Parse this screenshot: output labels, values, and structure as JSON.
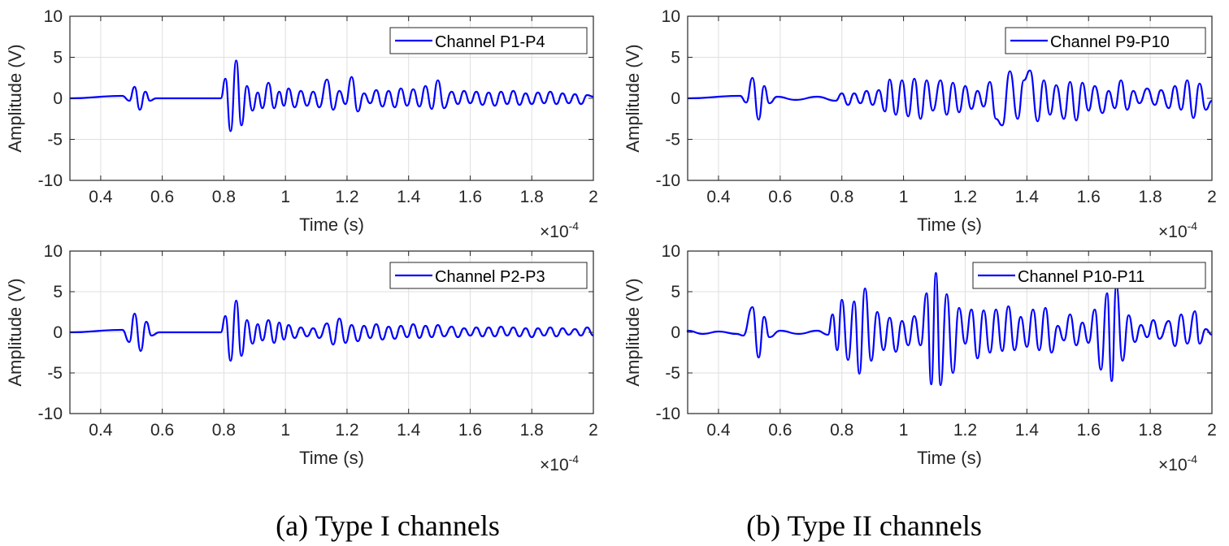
{
  "captions": {
    "left": "(a) Type I channels",
    "right": "(b) Type II channels"
  },
  "line_color": "#0000ff",
  "chart_data": [
    {
      "type": "line",
      "panel": "top-left",
      "legend": "Channel P1-P4",
      "xlabel": "Time (s)",
      "ylabel": "Amplitude (V)",
      "xlim": [
        0.3,
        2.0
      ],
      "ylim": [
        -10,
        10
      ],
      "x_multiplier": "×10",
      "x_exponent": "-4",
      "xticks": [
        "0.4",
        "0.6",
        "0.8",
        "1",
        "1.2",
        "1.4",
        "1.6",
        "1.8",
        "2"
      ],
      "yticks": [
        "10",
        "5",
        "0",
        "-5",
        "-10"
      ],
      "grid": true,
      "legend_position": "top-right",
      "peaks": [
        [
          0.47,
          0.3
        ],
        [
          0.493,
          -0.3
        ],
        [
          0.51,
          1.4
        ],
        [
          0.527,
          -1.4
        ],
        [
          0.545,
          0.8
        ],
        [
          0.56,
          -0.3
        ],
        [
          0.58,
          0.0
        ],
        [
          0.79,
          0.0
        ],
        [
          0.805,
          2.4
        ],
        [
          0.822,
          -4.0
        ],
        [
          0.84,
          4.6
        ],
        [
          0.857,
          -3.3
        ],
        [
          0.875,
          1.5
        ],
        [
          0.893,
          -1.5
        ],
        [
          0.91,
          0.7
        ],
        [
          0.925,
          -1.2
        ],
        [
          0.945,
          1.9
        ],
        [
          0.963,
          -1.2
        ],
        [
          0.98,
          0.8
        ],
        [
          0.995,
          -0.9
        ],
        [
          1.01,
          1.2
        ],
        [
          1.03,
          -1.1
        ],
        [
          1.05,
          0.9
        ],
        [
          1.07,
          -0.9
        ],
        [
          1.09,
          0.8
        ],
        [
          1.11,
          -1.1
        ],
        [
          1.135,
          2.3
        ],
        [
          1.155,
          -1.4
        ],
        [
          1.175,
          0.9
        ],
        [
          1.195,
          -0.7
        ],
        [
          1.215,
          2.6
        ],
        [
          1.235,
          -1.6
        ],
        [
          1.255,
          0.6
        ],
        [
          1.275,
          -0.6
        ],
        [
          1.295,
          1.0
        ],
        [
          1.315,
          -1.0
        ],
        [
          1.335,
          0.9
        ],
        [
          1.355,
          -1.1
        ],
        [
          1.375,
          1.2
        ],
        [
          1.395,
          -0.9
        ],
        [
          1.415,
          1.1
        ],
        [
          1.435,
          -1.0
        ],
        [
          1.455,
          1.5
        ],
        [
          1.475,
          -1.3
        ],
        [
          1.495,
          2.2
        ],
        [
          1.515,
          -1.2
        ],
        [
          1.54,
          0.8
        ],
        [
          1.56,
          -0.7
        ],
        [
          1.58,
          0.9
        ],
        [
          1.6,
          -0.6
        ],
        [
          1.62,
          0.8
        ],
        [
          1.64,
          -0.8
        ],
        [
          1.66,
          0.7
        ],
        [
          1.68,
          -0.9
        ],
        [
          1.7,
          0.8
        ],
        [
          1.72,
          -0.7
        ],
        [
          1.74,
          0.9
        ],
        [
          1.76,
          -0.8
        ],
        [
          1.78,
          0.6
        ],
        [
          1.8,
          -0.7
        ],
        [
          1.82,
          0.7
        ],
        [
          1.84,
          -0.6
        ],
        [
          1.86,
          0.8
        ],
        [
          1.88,
          -0.7
        ],
        [
          1.9,
          0.6
        ],
        [
          1.92,
          -0.6
        ],
        [
          1.94,
          0.5
        ],
        [
          1.96,
          -0.7
        ],
        [
          1.98,
          0.4
        ],
        [
          2.0,
          0.2
        ]
      ]
    },
    {
      "type": "line",
      "panel": "top-right",
      "legend": "Channel P9-P10",
      "xlabel": "Time (s)",
      "ylabel": "Amplitude (V)",
      "xlim": [
        0.3,
        2.0
      ],
      "ylim": [
        -10,
        10
      ],
      "x_multiplier": "×10",
      "x_exponent": "-4",
      "xticks": [
        "0.4",
        "0.6",
        "0.8",
        "1",
        "1.2",
        "1.4",
        "1.6",
        "1.8",
        "2"
      ],
      "yticks": [
        "10",
        "5",
        "0",
        "-5",
        "-10"
      ],
      "grid": true,
      "legend_position": "top-right",
      "peaks": [
        [
          0.47,
          0.3
        ],
        [
          0.49,
          -0.5
        ],
        [
          0.51,
          2.5
        ],
        [
          0.53,
          -2.6
        ],
        [
          0.548,
          1.5
        ],
        [
          0.565,
          -0.6
        ],
        [
          0.59,
          0.2
        ],
        [
          0.65,
          -0.2
        ],
        [
          0.72,
          0.2
        ],
        [
          0.78,
          -0.3
        ],
        [
          0.8,
          0.6
        ],
        [
          0.82,
          -0.8
        ],
        [
          0.84,
          0.6
        ],
        [
          0.86,
          -0.6
        ],
        [
          0.88,
          0.9
        ],
        [
          0.9,
          -0.8
        ],
        [
          0.92,
          1.0
        ],
        [
          0.94,
          -1.6
        ],
        [
          0.955,
          2.3
        ],
        [
          0.975,
          -2.0
        ],
        [
          0.995,
          2.2
        ],
        [
          1.015,
          -2.2
        ],
        [
          1.035,
          2.4
        ],
        [
          1.055,
          -2.5
        ],
        [
          1.075,
          2.2
        ],
        [
          1.095,
          -1.5
        ],
        [
          1.12,
          2.2
        ],
        [
          1.14,
          -2.0
        ],
        [
          1.16,
          1.9
        ],
        [
          1.18,
          -1.7
        ],
        [
          1.2,
          1.5
        ],
        [
          1.22,
          -1.3
        ],
        [
          1.24,
          0.9
        ],
        [
          1.26,
          -1.0
        ],
        [
          1.28,
          2.0
        ],
        [
          1.3,
          -2.5
        ],
        [
          1.32,
          -3.3
        ],
        [
          1.345,
          3.3
        ],
        [
          1.37,
          -2.5
        ],
        [
          1.39,
          2.2
        ],
        [
          1.41,
          3.4
        ],
        [
          1.435,
          -2.8
        ],
        [
          1.455,
          2.2
        ],
        [
          1.475,
          -2.0
        ],
        [
          1.495,
          1.6
        ],
        [
          1.52,
          -2.5
        ],
        [
          1.54,
          2.0
        ],
        [
          1.56,
          -2.7
        ],
        [
          1.58,
          1.9
        ],
        [
          1.6,
          -1.5
        ],
        [
          1.62,
          1.5
        ],
        [
          1.645,
          -1.8
        ],
        [
          1.665,
          0.9
        ],
        [
          1.685,
          -1.2
        ],
        [
          1.705,
          2.2
        ],
        [
          1.725,
          -1.4
        ],
        [
          1.745,
          0.9
        ],
        [
          1.765,
          -0.6
        ],
        [
          1.79,
          1.2
        ],
        [
          1.815,
          -0.8
        ],
        [
          1.835,
          1.0
        ],
        [
          1.86,
          -1.2
        ],
        [
          1.88,
          1.5
        ],
        [
          1.9,
          -1.4
        ],
        [
          1.92,
          2.2
        ],
        [
          1.94,
          -2.4
        ],
        [
          1.96,
          1.8
        ],
        [
          1.98,
          -1.4
        ],
        [
          2.0,
          -0.3
        ]
      ]
    },
    {
      "type": "line",
      "panel": "bottom-left",
      "legend": "Channel P2-P3",
      "xlabel": "Time (s)",
      "ylabel": "Amplitude (V)",
      "xlim": [
        0.3,
        2.0
      ],
      "ylim": [
        -10,
        10
      ],
      "x_multiplier": "×10",
      "x_exponent": "-4",
      "xticks": [
        "0.4",
        "0.6",
        "0.8",
        "1",
        "1.2",
        "1.4",
        "1.6",
        "1.8",
        "2"
      ],
      "yticks": [
        "10",
        "5",
        "0",
        "-5",
        "-10"
      ],
      "grid": true,
      "legend_position": "top-right",
      "peaks": [
        [
          0.47,
          0.3
        ],
        [
          0.493,
          -1.2
        ],
        [
          0.51,
          2.3
        ],
        [
          0.53,
          -2.3
        ],
        [
          0.548,
          1.3
        ],
        [
          0.565,
          -0.4
        ],
        [
          0.59,
          0.0
        ],
        [
          0.79,
          0.0
        ],
        [
          0.805,
          2.0
        ],
        [
          0.822,
          -3.5
        ],
        [
          0.84,
          3.9
        ],
        [
          0.857,
          -2.9
        ],
        [
          0.875,
          1.5
        ],
        [
          0.893,
          -1.4
        ],
        [
          0.91,
          1.0
        ],
        [
          0.925,
          -1.0
        ],
        [
          0.945,
          1.5
        ],
        [
          0.963,
          -1.3
        ],
        [
          0.98,
          1.2
        ],
        [
          0.995,
          -0.9
        ],
        [
          1.01,
          0.9
        ],
        [
          1.03,
          -0.7
        ],
        [
          1.05,
          0.6
        ],
        [
          1.07,
          -0.5
        ],
        [
          1.09,
          0.5
        ],
        [
          1.11,
          -0.7
        ],
        [
          1.135,
          1.1
        ],
        [
          1.155,
          -1.5
        ],
        [
          1.175,
          1.7
        ],
        [
          1.195,
          -1.3
        ],
        [
          1.215,
          0.9
        ],
        [
          1.235,
          -1.1
        ],
        [
          1.255,
          0.8
        ],
        [
          1.275,
          -0.7
        ],
        [
          1.295,
          1.0
        ],
        [
          1.315,
          -0.9
        ],
        [
          1.335,
          0.7
        ],
        [
          1.355,
          -0.8
        ],
        [
          1.375,
          0.8
        ],
        [
          1.395,
          -0.6
        ],
        [
          1.415,
          1.0
        ],
        [
          1.435,
          -0.7
        ],
        [
          1.455,
          0.8
        ],
        [
          1.475,
          -0.6
        ],
        [
          1.495,
          0.9
        ],
        [
          1.515,
          -0.5
        ],
        [
          1.54,
          0.7
        ],
        [
          1.56,
          -0.6
        ],
        [
          1.58,
          0.5
        ],
        [
          1.6,
          -0.4
        ],
        [
          1.62,
          0.6
        ],
        [
          1.64,
          -0.5
        ],
        [
          1.66,
          0.6
        ],
        [
          1.68,
          -0.5
        ],
        [
          1.7,
          0.7
        ],
        [
          1.72,
          -0.4
        ],
        [
          1.74,
          0.6
        ],
        [
          1.76,
          -0.5
        ],
        [
          1.78,
          0.5
        ],
        [
          1.8,
          -0.6
        ],
        [
          1.82,
          0.5
        ],
        [
          1.84,
          -0.4
        ],
        [
          1.86,
          0.6
        ],
        [
          1.88,
          -0.5
        ],
        [
          1.9,
          0.5
        ],
        [
          1.92,
          -0.3
        ],
        [
          1.94,
          0.4
        ],
        [
          1.96,
          -0.4
        ],
        [
          1.98,
          0.6
        ],
        [
          2.0,
          -0.4
        ]
      ]
    },
    {
      "type": "line",
      "panel": "bottom-right",
      "legend": "Channel P10-P11",
      "xlabel": "Time (s)",
      "ylabel": "Amplitude (V)",
      "xlim": [
        0.3,
        2.0
      ],
      "ylim": [
        -10,
        10
      ],
      "x_multiplier": "×10",
      "x_exponent": "-4",
      "xticks": [
        "0.4",
        "0.6",
        "0.8",
        "1",
        "1.2",
        "1.4",
        "1.6",
        "1.8",
        "2"
      ],
      "yticks": [
        "10",
        "5",
        "0",
        "-5",
        "-10"
      ],
      "grid": true,
      "legend_position": "top-right",
      "peaks": [
        [
          0.3,
          0.2
        ],
        [
          0.35,
          -0.2
        ],
        [
          0.4,
          0.1
        ],
        [
          0.46,
          -0.2
        ],
        [
          0.48,
          -0.4
        ],
        [
          0.51,
          3.1
        ],
        [
          0.53,
          -3.1
        ],
        [
          0.548,
          1.9
        ],
        [
          0.565,
          -0.6
        ],
        [
          0.6,
          0.2
        ],
        [
          0.66,
          -0.2
        ],
        [
          0.72,
          0.2
        ],
        [
          0.755,
          -0.3
        ],
        [
          0.77,
          2.2
        ],
        [
          0.785,
          -2.2
        ],
        [
          0.8,
          4.0
        ],
        [
          0.82,
          -3.4
        ],
        [
          0.84,
          3.8
        ],
        [
          0.857,
          -5.1
        ],
        [
          0.875,
          5.4
        ],
        [
          0.895,
          -3.5
        ],
        [
          0.915,
          2.5
        ],
        [
          0.935,
          -2.2
        ],
        [
          0.955,
          1.8
        ],
        [
          0.975,
          -2.4
        ],
        [
          0.995,
          1.4
        ],
        [
          1.015,
          -1.6
        ],
        [
          1.035,
          2.0
        ],
        [
          1.055,
          -1.6
        ],
        [
          1.075,
          4.8
        ],
        [
          1.09,
          -6.4
        ],
        [
          1.105,
          7.3
        ],
        [
          1.12,
          -6.5
        ],
        [
          1.14,
          4.7
        ],
        [
          1.16,
          -5.0
        ],
        [
          1.18,
          3.0
        ],
        [
          1.2,
          -1.4
        ],
        [
          1.22,
          2.8
        ],
        [
          1.24,
          -3.2
        ],
        [
          1.26,
          2.7
        ],
        [
          1.28,
          -2.5
        ],
        [
          1.3,
          2.8
        ],
        [
          1.32,
          -2.3
        ],
        [
          1.34,
          3.2
        ],
        [
          1.36,
          -2.2
        ],
        [
          1.38,
          1.9
        ],
        [
          1.4,
          -1.8
        ],
        [
          1.42,
          2.8
        ],
        [
          1.44,
          -2.2
        ],
        [
          1.46,
          3.0
        ],
        [
          1.48,
          -2.5
        ],
        [
          1.5,
          0.8
        ],
        [
          1.52,
          -1.0
        ],
        [
          1.54,
          2.2
        ],
        [
          1.56,
          -1.6
        ],
        [
          1.58,
          1.2
        ],
        [
          1.6,
          -1.3
        ],
        [
          1.62,
          2.8
        ],
        [
          1.64,
          -4.6
        ],
        [
          1.66,
          4.8
        ],
        [
          1.675,
          -6.0
        ],
        [
          1.69,
          5.8
        ],
        [
          1.71,
          -3.5
        ],
        [
          1.73,
          2.1
        ],
        [
          1.75,
          -1.2
        ],
        [
          1.77,
          0.9
        ],
        [
          1.79,
          -0.6
        ],
        [
          1.81,
          1.5
        ],
        [
          1.83,
          -0.8
        ],
        [
          1.86,
          1.4
        ],
        [
          1.88,
          -1.7
        ],
        [
          1.9,
          2.2
        ],
        [
          1.92,
          -1.4
        ],
        [
          1.945,
          2.6
        ],
        [
          1.96,
          -1.4
        ],
        [
          1.98,
          0.4
        ],
        [
          2.0,
          -0.3
        ]
      ]
    }
  ]
}
